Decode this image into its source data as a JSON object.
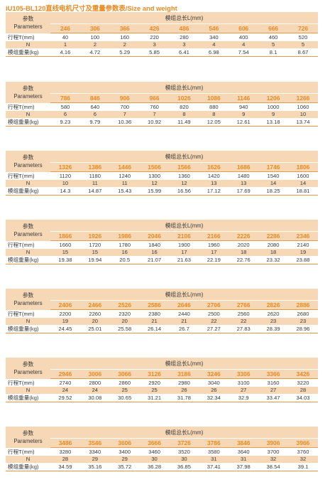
{
  "title": "iU105-BL120直线电机尺寸及重量参数表/Size and weight",
  "labels": {
    "param_cn": "参数",
    "param_en": "Parameters",
    "total_length": "模组总长L(mm)",
    "stroke": "行程T(mm)",
    "n": "N",
    "weight": "模组重量(kg)"
  },
  "tables": [
    {
      "lengths": [
        "246",
        "306",
        "366",
        "426",
        "486",
        "546",
        "606",
        "666",
        "726"
      ],
      "strokes": [
        "40",
        "100",
        "160",
        "220",
        "280",
        "340",
        "400",
        "460",
        "520"
      ],
      "n": [
        "1",
        "2",
        "2",
        "3",
        "3",
        "4",
        "4",
        "5",
        "5"
      ],
      "weights": [
        "4.16",
        "4.72",
        "5.29",
        "5.85",
        "6.41",
        "6.98",
        "7.54",
        "8.1",
        "8.67"
      ]
    },
    {
      "lengths": [
        "786",
        "846",
        "906",
        "966",
        "1026",
        "1086",
        "1146",
        "1206",
        "1266"
      ],
      "strokes": [
        "580",
        "640",
        "700",
        "760",
        "820",
        "880",
        "940",
        "1000",
        "1060"
      ],
      "n": [
        "6",
        "6",
        "7",
        "7",
        "8",
        "8",
        "9",
        "9",
        "10"
      ],
      "weights": [
        "9.23",
        "9.79",
        "10.36",
        "10.92",
        "11.49",
        "12.05",
        "12.61",
        "13.18",
        "13.74"
      ]
    },
    {
      "lengths": [
        "1326",
        "1386",
        "1446",
        "1506",
        "1566",
        "1626",
        "1686",
        "1746",
        "1806"
      ],
      "strokes": [
        "1120",
        "1180",
        "1240",
        "1300",
        "1360",
        "1420",
        "1480",
        "1540",
        "1600"
      ],
      "n": [
        "10",
        "11",
        "11",
        "12",
        "12",
        "13",
        "13",
        "14",
        "14"
      ],
      "weights": [
        "14.3",
        "14.87",
        "15.43",
        "15.99",
        "16.56",
        "17.12",
        "17.69",
        "18.25",
        "18.81"
      ]
    },
    {
      "lengths": [
        "1866",
        "1926",
        "1986",
        "2046",
        "2106",
        "2166",
        "2226",
        "2286",
        "2346"
      ],
      "strokes": [
        "1660",
        "1720",
        "1780",
        "1840",
        "1900",
        "1960",
        "2020",
        "2080",
        "2140"
      ],
      "n": [
        "15",
        "15",
        "16",
        "16",
        "17",
        "17",
        "18",
        "18",
        "19"
      ],
      "weights": [
        "19.38",
        "19.94",
        "20.5",
        "21.07",
        "21.63",
        "22.19",
        "22.76",
        "23.32",
        "23.88"
      ]
    },
    {
      "lengths": [
        "2406",
        "2466",
        "2526",
        "2586",
        "2646",
        "2706",
        "2766",
        "2826",
        "2886"
      ],
      "strokes": [
        "2200",
        "2260",
        "2320",
        "2380",
        "2440",
        "2500",
        "2560",
        "2620",
        "2680"
      ],
      "n": [
        "19",
        "20",
        "20",
        "21",
        "21",
        "22",
        "22",
        "23",
        "23"
      ],
      "weights": [
        "24.45",
        "25.01",
        "25.58",
        "26.14",
        "26.7",
        "27.27",
        "27.83",
        "28.39",
        "28.96"
      ]
    },
    {
      "lengths": [
        "2946",
        "3006",
        "3066",
        "3126",
        "3186",
        "3246",
        "3306",
        "3366",
        "3426"
      ],
      "strokes": [
        "2740",
        "2800",
        "2860",
        "2920",
        "2980",
        "3040",
        "3100",
        "3160",
        "3220"
      ],
      "n": [
        "24",
        "24",
        "25",
        "25",
        "26",
        "26",
        "27",
        "27",
        "28"
      ],
      "weights": [
        "29.52",
        "30.08",
        "30.65",
        "31.21",
        "31.78",
        "32.34",
        "32.9",
        "33.47",
        "34.03"
      ]
    },
    {
      "lengths": [
        "3486",
        "3546",
        "3606",
        "3666",
        "3726",
        "3786",
        "3846",
        "3906",
        "3966"
      ],
      "strokes": [
        "3280",
        "3340",
        "3400",
        "3460",
        "3520",
        "3580",
        "3640",
        "3700",
        "3760"
      ],
      "n": [
        "28",
        "29",
        "29",
        "30",
        "30",
        "31",
        "31",
        "32",
        "32"
      ],
      "weights": [
        "34.59",
        "35.16",
        "35.72",
        "36.28",
        "36.85",
        "37.41",
        "37.98",
        "38.54",
        "39.1"
      ]
    }
  ]
}
